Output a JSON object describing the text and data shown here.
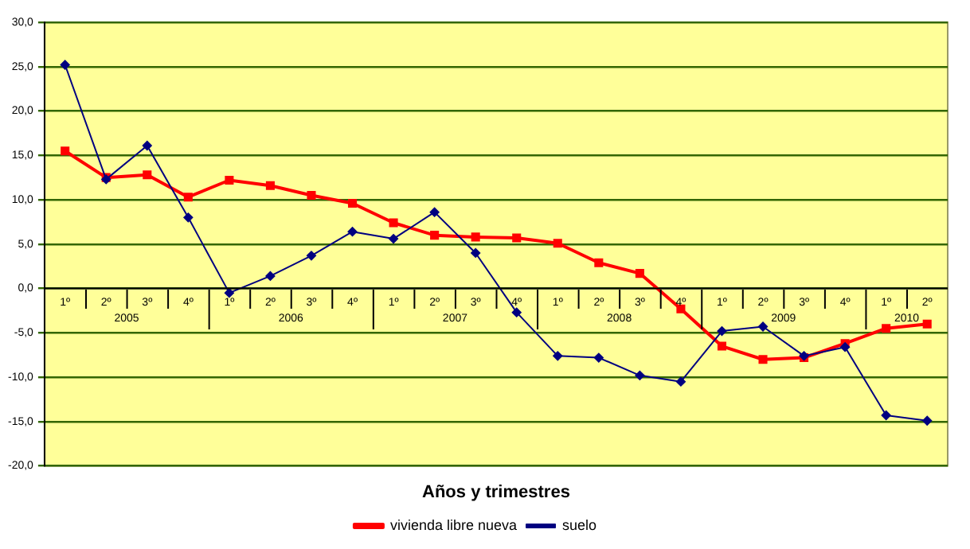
{
  "chart_data": {
    "type": "line",
    "xlabel": "Años y trimestres",
    "categories": [
      "1º",
      "2º",
      "3º",
      "4º",
      "1º",
      "2º",
      "3º",
      "4º",
      "1º",
      "2º",
      "3º",
      "4º",
      "1º",
      "2º",
      "3º",
      "4º",
      "1º",
      "2º",
      "3º",
      "4º",
      "1º",
      "2º"
    ],
    "annotations": [
      "2005",
      "2006",
      "2007",
      "2008",
      "2009",
      "2010"
    ],
    "series": [
      {
        "name": "vivienda libre nueva",
        "color": "#ff0000",
        "marker": "square",
        "values": [
          15.5,
          12.5,
          12.8,
          10.3,
          12.2,
          11.6,
          10.5,
          9.6,
          7.4,
          6.0,
          5.8,
          5.7,
          5.1,
          2.9,
          1.7,
          -2.3,
          -6.5,
          -8.0,
          -7.8,
          -6.2,
          -4.5,
          -4.0
        ]
      },
      {
        "name": "suelo",
        "color": "#000080",
        "marker": "diamond",
        "values": [
          25.2,
          12.3,
          16.1,
          8.0,
          -0.5,
          1.4,
          3.7,
          6.4,
          5.6,
          8.6,
          4.0,
          -2.7,
          -7.6,
          -7.8,
          -9.8,
          -10.5,
          -4.8,
          -4.3,
          -7.6,
          -6.6,
          -14.3,
          -14.9
        ]
      }
    ],
    "ylim": [
      -20,
      30
    ],
    "yticks": [
      {
        "value": -20,
        "label": "-20,0"
      },
      {
        "value": -15,
        "label": "-15,0"
      },
      {
        "value": -10,
        "label": "-10,0"
      },
      {
        "value": -5,
        "label": "-5,0"
      },
      {
        "value": 0,
        "label": "0,0"
      },
      {
        "value": 5,
        "label": "5,0"
      },
      {
        "value": 10,
        "label": "10,0"
      },
      {
        "value": 15,
        "label": "15,0"
      },
      {
        "value": 20,
        "label": "20,0"
      },
      {
        "value": 25,
        "label": "25,0"
      },
      {
        "value": 30,
        "label": "30,0"
      }
    ],
    "grid": "y",
    "legend": "bottom",
    "line_style": "solid"
  }
}
